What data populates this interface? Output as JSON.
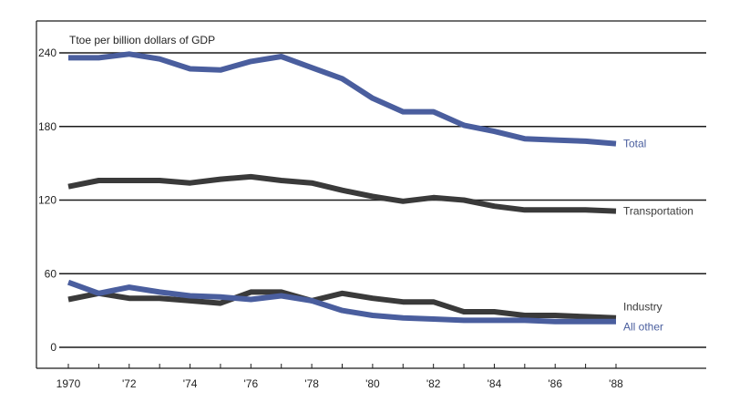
{
  "chart_data": {
    "type": "line",
    "ylabel": "Ttoe per billion dollars of GDP",
    "xlabel": "",
    "ylim": [
      0,
      240
    ],
    "xlim": [
      1970,
      1988
    ],
    "y_ticks": [
      "0",
      "60",
      "120",
      "180",
      "240"
    ],
    "x_ticks": [
      "1970",
      "'72",
      "'74",
      "'76",
      "'78",
      "'80",
      "'82",
      "'84",
      "'86",
      "'88"
    ],
    "grid": "horizontal",
    "x": [
      1970,
      1971,
      1972,
      1973,
      1974,
      1975,
      1976,
      1977,
      1978,
      1979,
      1980,
      1981,
      1982,
      1983,
      1984,
      1985,
      1986,
      1987,
      1988
    ],
    "series": [
      {
        "name": "Total",
        "color": "#4a5e9e",
        "values": [
          236,
          236,
          239,
          235,
          227,
          226,
          233,
          237,
          228,
          219,
          203,
          192,
          192,
          181,
          176,
          170,
          169,
          168,
          166
        ]
      },
      {
        "name": "Transportation",
        "color": "#3a3a3a",
        "values": [
          131,
          136,
          136,
          136,
          134,
          137,
          139,
          136,
          134,
          128,
          123,
          119,
          122,
          120,
          115,
          112,
          112,
          112,
          111
        ]
      },
      {
        "name": "Industry",
        "color": "#3a3a3a",
        "values": [
          39,
          44,
          40,
          40,
          38,
          36,
          45,
          45,
          38,
          44,
          40,
          37,
          37,
          29,
          29,
          26,
          26,
          25,
          24
        ]
      },
      {
        "name": "All other",
        "color": "#4a5e9e",
        "values": [
          53,
          44,
          49,
          45,
          42,
          41,
          39,
          42,
          38,
          30,
          26,
          24,
          23,
          22,
          22,
          22,
          21,
          21,
          21
        ]
      }
    ]
  }
}
